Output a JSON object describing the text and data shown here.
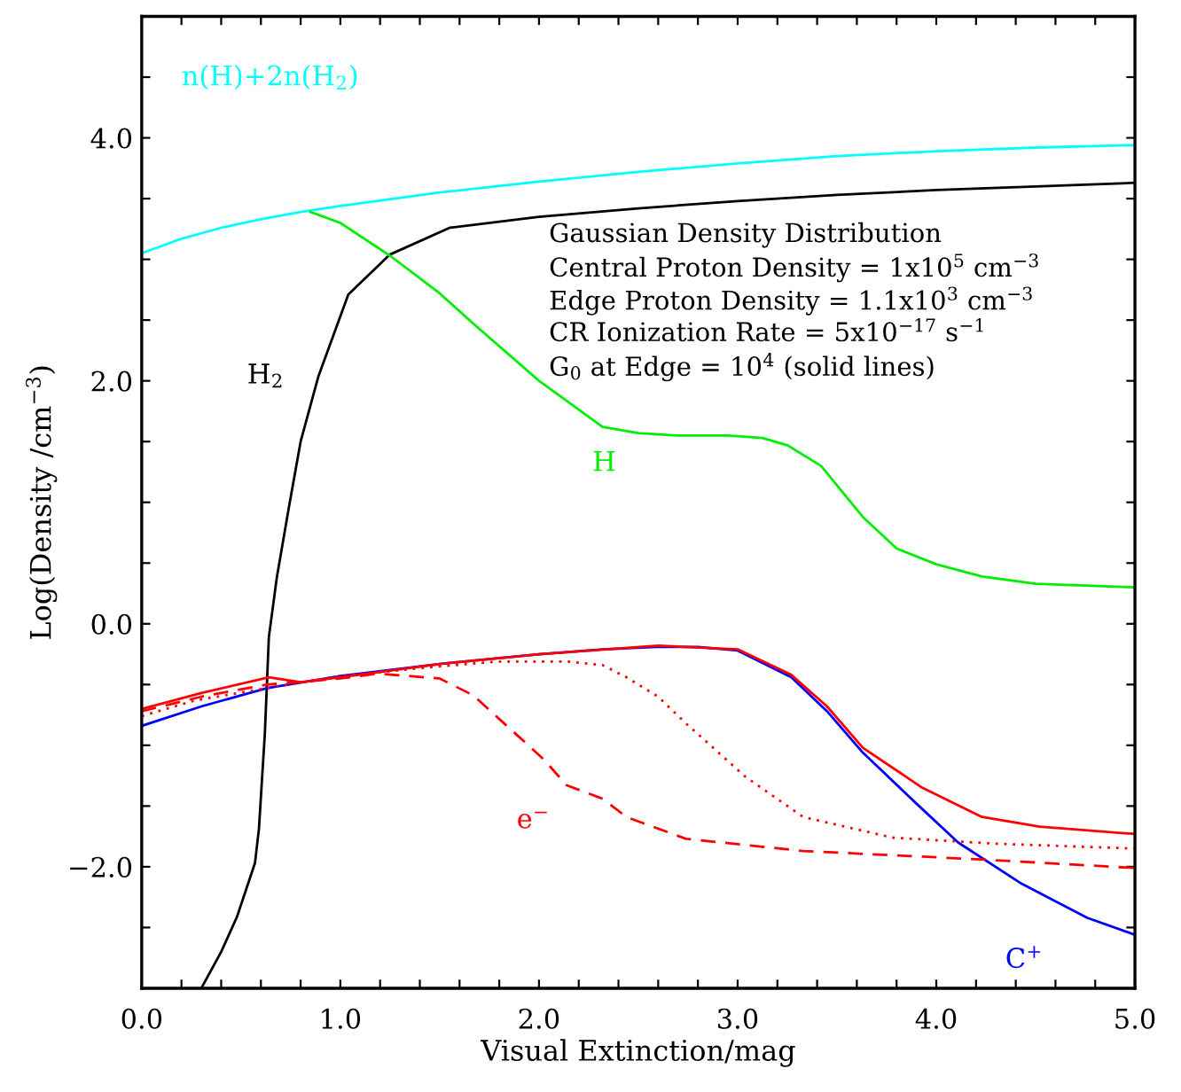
{
  "chart_data": {
    "type": "line",
    "xlabel": "Visual Extinction/mag",
    "ylabel": "Log(Density /cm$^{−3}$)",
    "xlim": [
      0,
      5
    ],
    "ylim": [
      -3,
      5
    ],
    "xticks": [
      {
        "value": 0,
        "label": "0.0"
      },
      {
        "value": 0.2,
        "label": null
      },
      {
        "value": 0.4,
        "label": null
      },
      {
        "value": 0.6,
        "label": null
      },
      {
        "value": 0.8,
        "label": null
      },
      {
        "value": 1,
        "label": "1.0"
      },
      {
        "value": 1.2,
        "label": null
      },
      {
        "value": 1.4,
        "label": null
      },
      {
        "value": 1.6,
        "label": null
      },
      {
        "value": 1.8,
        "label": null
      },
      {
        "value": 2,
        "label": "2.0"
      },
      {
        "value": 2.2,
        "label": null
      },
      {
        "value": 2.4,
        "label": null
      },
      {
        "value": 2.6,
        "label": null
      },
      {
        "value": 2.8,
        "label": null
      },
      {
        "value": 3,
        "label": "3.0"
      },
      {
        "value": 3.2,
        "label": null
      },
      {
        "value": 3.4,
        "label": null
      },
      {
        "value": 3.6,
        "label": null
      },
      {
        "value": 3.8,
        "label": null
      },
      {
        "value": 4,
        "label": "4.0"
      },
      {
        "value": 4.2,
        "label": null
      },
      {
        "value": 4.4,
        "label": null
      },
      {
        "value": 4.6,
        "label": null
      },
      {
        "value": 4.8,
        "label": null
      },
      {
        "value": 5,
        "label": "5.0"
      }
    ],
    "yticks": [
      {
        "value": -3,
        "label": null
      },
      {
        "value": -2.5,
        "label": null
      },
      {
        "value": -2,
        "label": "−2.0"
      },
      {
        "value": -1.5,
        "label": null
      },
      {
        "value": -1,
        "label": null
      },
      {
        "value": -0.5,
        "label": null
      },
      {
        "value": 0,
        "label": "0.0"
      },
      {
        "value": 0.5,
        "label": null
      },
      {
        "value": 1,
        "label": null
      },
      {
        "value": 1.5,
        "label": null
      },
      {
        "value": 2,
        "label": "2.0"
      },
      {
        "value": 2.5,
        "label": null
      },
      {
        "value": 3,
        "label": null
      },
      {
        "value": 3.5,
        "label": null
      },
      {
        "value": 4,
        "label": "4.0"
      },
      {
        "value": 4.5,
        "label": null
      },
      {
        "value": 5,
        "label": null
      }
    ],
    "grid": false,
    "legend": false,
    "marker": "none",
    "annotations": [
      "Gaussian Density Distribution",
      "Central Proton Density = 1x10$^{5}$ cm$^{−3}$",
      "Edge Proton Density = 1.1x10$^{3}$ cm$^{−3}$",
      "CR Ionization Rate = 5x10$^{−17}$ s$^{−1}$",
      "G$_{0}$ at Edge = 10$^{4}$ (solid lines)"
    ],
    "series": [
      {
        "name": "n(H)+2n(H$_{2}$)",
        "color": "#00ffff",
        "line_style": "solid",
        "x": [
          0,
          0.2,
          0.4,
          0.6,
          0.8,
          1.0,
          1.5,
          2.0,
          2.5,
          3.0,
          3.5,
          4.0,
          4.5,
          5.0
        ],
        "values": [
          3.05,
          3.17,
          3.26,
          3.33,
          3.39,
          3.44,
          3.55,
          3.64,
          3.72,
          3.79,
          3.85,
          3.89,
          3.92,
          3.94
        ]
      },
      {
        "name": "H$_{2}$",
        "color": "#000000",
        "line_style": "solid",
        "x": [
          0.3,
          0.4,
          0.48,
          0.57,
          0.59,
          0.62,
          0.64,
          0.68,
          0.74,
          0.8,
          0.89,
          1.04,
          1.25,
          1.55,
          2.0,
          2.5,
          3.0,
          3.5,
          4.0,
          4.5,
          5.0
        ],
        "values": [
          -3.0,
          -2.7,
          -2.41,
          -1.97,
          -1.69,
          -0.9,
          -0.11,
          0.38,
          0.95,
          1.5,
          2.04,
          2.71,
          3.04,
          3.26,
          3.35,
          3.42,
          3.48,
          3.53,
          3.57,
          3.6,
          3.63
        ]
      },
      {
        "name": "H",
        "color": "#00ee00",
        "line_style": "solid",
        "x": [
          0.85,
          1.0,
          1.25,
          1.5,
          1.67,
          2.0,
          2.32,
          2.5,
          2.7,
          2.95,
          3.125,
          3.25,
          3.42,
          3.63,
          3.8,
          4.0,
          4.23,
          4.5,
          5.0
        ],
        "values": [
          3.39,
          3.3,
          3.03,
          2.72,
          2.47,
          2.0,
          1.62,
          1.57,
          1.55,
          1.55,
          1.53,
          1.47,
          1.3,
          0.88,
          0.62,
          0.49,
          0.39,
          0.33,
          0.3
        ]
      },
      {
        "name": "C$^{+}$",
        "color": "#0000ff",
        "line_style": "solid",
        "x": [
          0,
          0.3,
          0.63,
          1.0,
          1.5,
          2.0,
          2.32,
          2.59,
          2.8,
          3.0,
          3.27,
          3.45,
          3.63,
          3.9,
          4.11,
          4.43,
          4.76,
          5.0
        ],
        "values": [
          -0.84,
          -0.68,
          -0.53,
          -0.43,
          -0.33,
          -0.25,
          -0.21,
          -0.19,
          -0.19,
          -0.22,
          -0.44,
          -0.72,
          -1.06,
          -1.48,
          -1.8,
          -2.14,
          -2.42,
          -2.56
        ]
      },
      {
        "color": "#ff0000",
        "line_style": "solid",
        "x": [
          0,
          0.3,
          0.64,
          0.8,
          1.0,
          1.5,
          2.0,
          2.6,
          3.0,
          3.27,
          3.45,
          3.63,
          3.93,
          4.23,
          4.52,
          5.0
        ],
        "values": [
          -0.7,
          -0.57,
          -0.44,
          -0.48,
          -0.44,
          -0.33,
          -0.25,
          -0.18,
          -0.21,
          -0.42,
          -0.68,
          -1.02,
          -1.35,
          -1.59,
          -1.67,
          -1.73
        ]
      },
      {
        "color": "#ff0000",
        "line_style": "dotted",
        "x": [
          0,
          0.27,
          0.63,
          1.0,
          1.5,
          1.8,
          2.14,
          2.32,
          2.44,
          2.6,
          2.74,
          3.04,
          3.33,
          3.78,
          4.3,
          5.0
        ],
        "values": [
          -0.76,
          -0.63,
          -0.53,
          -0.43,
          -0.35,
          -0.31,
          -0.31,
          -0.34,
          -0.44,
          -0.6,
          -0.82,
          -1.26,
          -1.59,
          -1.76,
          -1.81,
          -1.85
        ]
      },
      {
        "name": "e$^{−}$",
        "color": "#ff0000",
        "line_style": "dashed",
        "x": [
          0,
          0.3,
          0.63,
          0.8,
          1.0,
          1.19,
          1.5,
          1.67,
          2.02,
          2.14,
          2.32,
          2.44,
          2.74,
          3.33,
          4.23,
          5.0
        ],
        "values": [
          -0.72,
          -0.6,
          -0.5,
          -0.48,
          -0.45,
          -0.41,
          -0.45,
          -0.59,
          -1.11,
          -1.33,
          -1.44,
          -1.59,
          -1.77,
          -1.87,
          -1.94,
          -2.01
        ]
      }
    ]
  }
}
